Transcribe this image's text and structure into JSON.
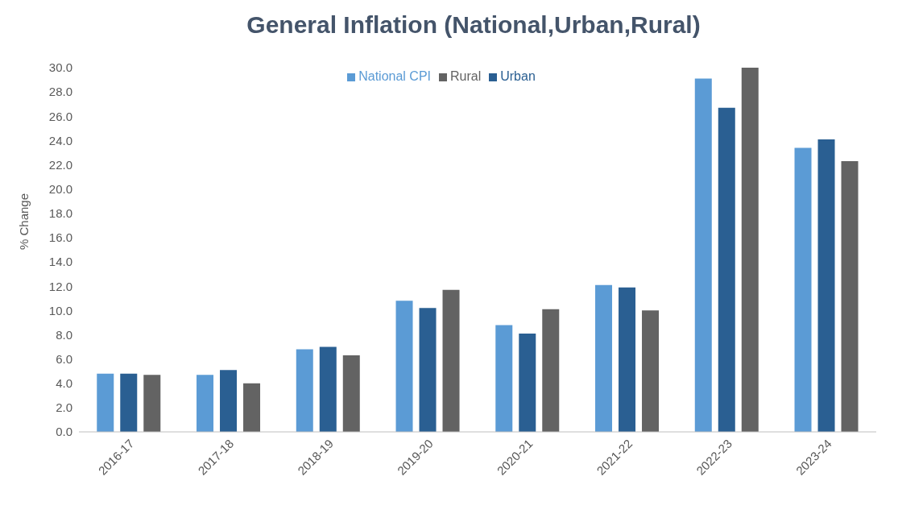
{
  "chart_data": {
    "type": "bar",
    "title": "General Inflation (National,Urban,Rural)",
    "ylabel": "% Change",
    "categories": [
      "2016-17",
      "2017-18",
      "2018-19",
      "2019-20",
      "2020-21",
      "2021-22",
      "2022-23",
      "2023-24"
    ],
    "series": [
      {
        "name": "National CPI",
        "color": "#5b9bd5",
        "values": [
          4.8,
          4.7,
          6.8,
          10.8,
          8.8,
          12.1,
          29.1,
          23.4
        ]
      },
      {
        "name": "Urban",
        "color": "#2a5f92",
        "values": [
          4.8,
          5.1,
          7.0,
          10.2,
          8.1,
          11.9,
          26.7,
          24.1
        ]
      },
      {
        "name": "Rural",
        "color": "#636363",
        "values": [
          4.7,
          4.0,
          6.3,
          11.7,
          10.1,
          10.0,
          30.0,
          22.3
        ]
      }
    ],
    "ylim": [
      0,
      30
    ],
    "yticks": [
      {
        "value": 0,
        "label": "0.0"
      },
      {
        "value": 2,
        "label": "2.0"
      },
      {
        "value": 4,
        "label": "4.0"
      },
      {
        "value": 6,
        "label": "6.0"
      },
      {
        "value": 8,
        "label": "8.0"
      },
      {
        "value": 10,
        "label": "10.0"
      },
      {
        "value": 12,
        "label": "12.0"
      },
      {
        "value": 14,
        "label": "14.0"
      },
      {
        "value": 16,
        "label": "16.0"
      },
      {
        "value": 18,
        "label": "18.0"
      },
      {
        "value": 20,
        "label": "20.0"
      },
      {
        "value": 22,
        "label": "22.0"
      },
      {
        "value": 24,
        "label": "24.0"
      },
      {
        "value": 26,
        "label": "26.0"
      },
      {
        "value": 28,
        "label": "28.0"
      },
      {
        "value": 30,
        "label": "30.0"
      }
    ],
    "grid": false,
    "legend": "top"
  }
}
